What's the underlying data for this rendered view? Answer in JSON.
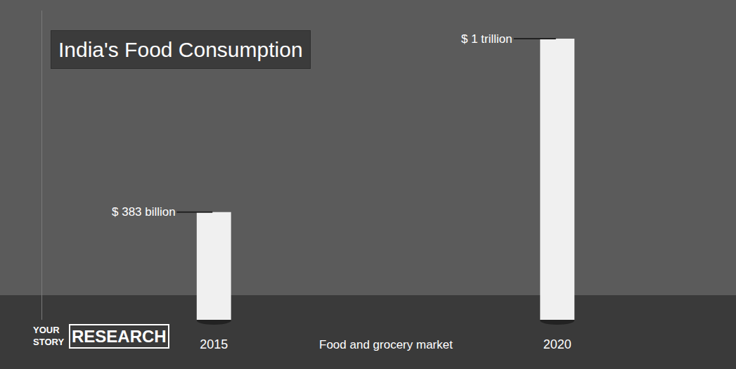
{
  "chart_data": {
    "type": "bar",
    "title": "India's Food Consumption",
    "x_label": "Food and grocery market",
    "source": "YOUR STORY RESEARCH",
    "categories": [
      "2015",
      "2020"
    ],
    "values": [
      383,
      1000
    ],
    "value_labels": [
      "$ 383 billion",
      "$ 1 trillion"
    ],
    "data_labels": true,
    "color": "#f0f0f0",
    "ylim": [
      0,
      1100
    ],
    "yticks": [],
    "tick_labels": "x",
    "grid": false
  }
}
